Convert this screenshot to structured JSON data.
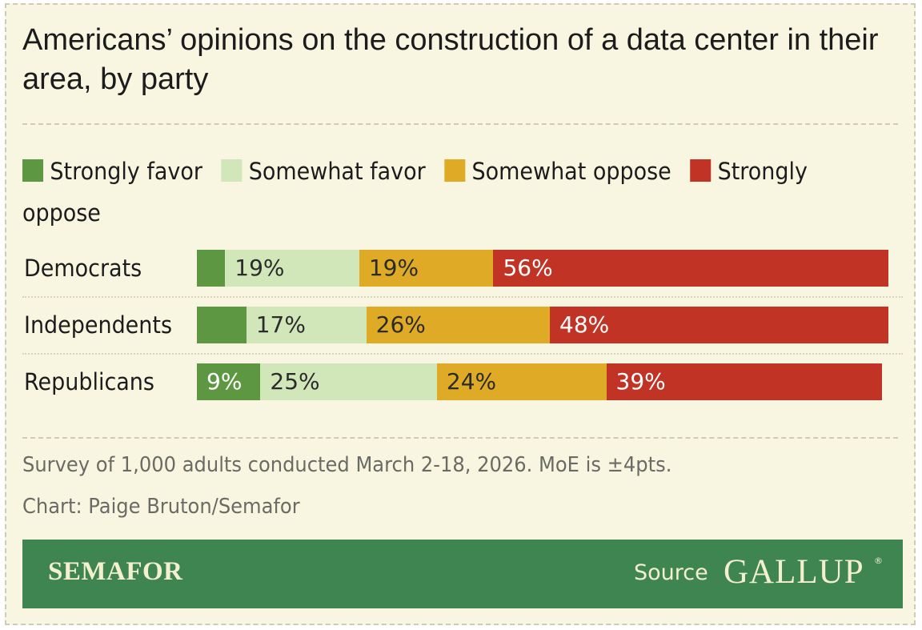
{
  "header": {
    "title": "Americans’ opinions on the construction of a data center in their area, by party"
  },
  "chart_data": {
    "type": "bar",
    "orientation": "horizontal",
    "stacked": true,
    "categories": [
      "Democrats",
      "Independents",
      "Republicans"
    ],
    "series": [
      {
        "name": "Strongly favor",
        "color": "#5e9741",
        "values": [
          4,
          7,
          9
        ],
        "labels": [
          "",
          "",
          "9%"
        ]
      },
      {
        "name": "Somewhat favor",
        "color": "#d2e7b9",
        "values": [
          19,
          17,
          25
        ],
        "labels": [
          "19%",
          "17%",
          "25%"
        ]
      },
      {
        "name": "Somewhat oppose",
        "color": "#dfab27",
        "values": [
          19,
          26,
          24
        ],
        "labels": [
          "19%",
          "26%",
          "24%"
        ]
      },
      {
        "name": "Strongly oppose",
        "color": "#c03325",
        "values": [
          56,
          48,
          39
        ],
        "labels": [
          "56%",
          "48%",
          "39%"
        ]
      }
    ],
    "xlim": [
      0,
      100
    ],
    "legend_position": "top-left",
    "grid": false
  },
  "notes": {
    "survey": "Survey of 1,000 adults conducted March 2-18, 2026. MoE is ±4pts.",
    "credit": "Chart: Paige Bruton/Semafor"
  },
  "footer": {
    "brand": "SEMAFOR",
    "source_label": "Source",
    "source_logo": "GALLUP",
    "registered_mark": "®"
  },
  "colors": {
    "background": "#f8f6e1",
    "footer_background": "#3e8552",
    "footer_text": "#f4efcf",
    "label_dark": "#2b2b2b",
    "label_light": "#ffffff"
  }
}
